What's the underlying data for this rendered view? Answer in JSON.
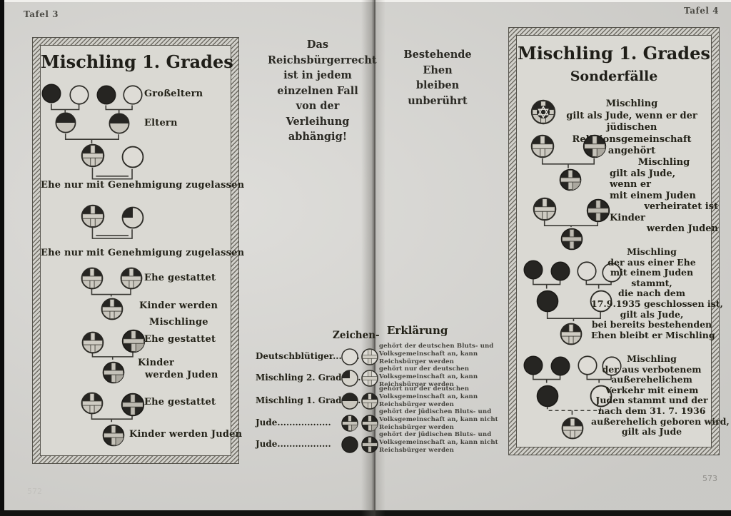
{
  "colors": {
    "paper": "#d7d6d2",
    "ink": "#28271f"
  },
  "page": {
    "tafel_left": "Tafel 3",
    "tafel_right": "Tafel 4",
    "page_number_left": "572",
    "page_number_right": "573"
  },
  "left_panel": {
    "title": "Mischling 1. Grades",
    "label_grandparents": "Großeltern",
    "label_parents": "Eltern",
    "rule_permission_1": "Ehe nur mit Genehmigung zugelassen",
    "rule_permission_2": "Ehe nur mit Genehmigung zugelassen",
    "rule_allowed_1": "Ehe gestattet",
    "children_mischlinge_line1": "Kinder werden",
    "children_mischlinge_line2": "Mischlinge",
    "rule_allowed_2": "Ehe gestattet",
    "children_juden_line1": "Kinder",
    "children_juden_line2": "werden Juden",
    "rule_allowed_3": "Ehe gestattet",
    "children_juden_single": "Kinder werden Juden"
  },
  "center_notes": {
    "reichsbuergerrecht": [
      "Das",
      "Reichsbürgerrecht",
      "ist in jedem",
      "einzelnen Fall",
      "von der",
      "Verleihung",
      "abhängig!"
    ],
    "ehen": [
      "Bestehende Ehen",
      "bleiben",
      "unberührt"
    ]
  },
  "legend": {
    "heading_left": "Zeichen-",
    "heading_right": "Erklärung",
    "rows": [
      {
        "label": "Deutschblütiger.........",
        "symbol": "deutschbluetiger",
        "explanation": "gehört der deutschen Bluts- und Volksgemeinschaft an, kann Reichsbürger werden"
      },
      {
        "label": "Mischling 2. Grades....",
        "symbol": "mischling-2-grades",
        "explanation": "gehört nur der deutschen Volksgemeinschaft an, kann Reichsbürger werden"
      },
      {
        "label": "Mischling 1. Grades....",
        "symbol": "mischling-1-grades",
        "explanation": "gehört nur der deutschen Volksgemeinschaft an, kann Reichsbürger werden"
      },
      {
        "label": "Jude..................",
        "symbol": "jude-dreiviertel",
        "explanation": "gehört der jüdischen Bluts- und Volksgemeinschaft an, kann nicht Reichsbürger werden"
      },
      {
        "label": "Jude..................",
        "symbol": "jude-voll",
        "explanation": "gehört der jüdischen Bluts- und Volksgemeinschaft an, kann nicht Reichsbürger werden"
      }
    ]
  },
  "right_panel": {
    "title": "Mischling 1. Grades",
    "subtitle": "Sonderfälle",
    "case1_lines": [
      "Mischling",
      "gilt als Jude, wenn er der jüdischen",
      "Religionsgemeinschaft angehört"
    ],
    "case2_lines": [
      "Mischling",
      "gilt als Jude,",
      "wenn er",
      "mit einem Juden",
      "verheiratet ist",
      "Kinder",
      "werden Juden"
    ],
    "case3_lines": [
      "Mischling",
      "der aus einer Ehe",
      "mit einem Juden",
      "stammt,",
      "die nach dem",
      "17.9.1935 geschlossen ist,",
      "gilt als Jude,",
      "bei bereits bestehenden",
      "Ehen bleibt er Mischling"
    ],
    "case4_lines": [
      "Mischling",
      "der aus verbotenem",
      "außerehelichem",
      "Verkehr mit einem",
      "Juden stammt und der",
      "nach dem 31. 7. 1936",
      "außerehelich geboren wird,",
      "gilt als Jude"
    ]
  }
}
